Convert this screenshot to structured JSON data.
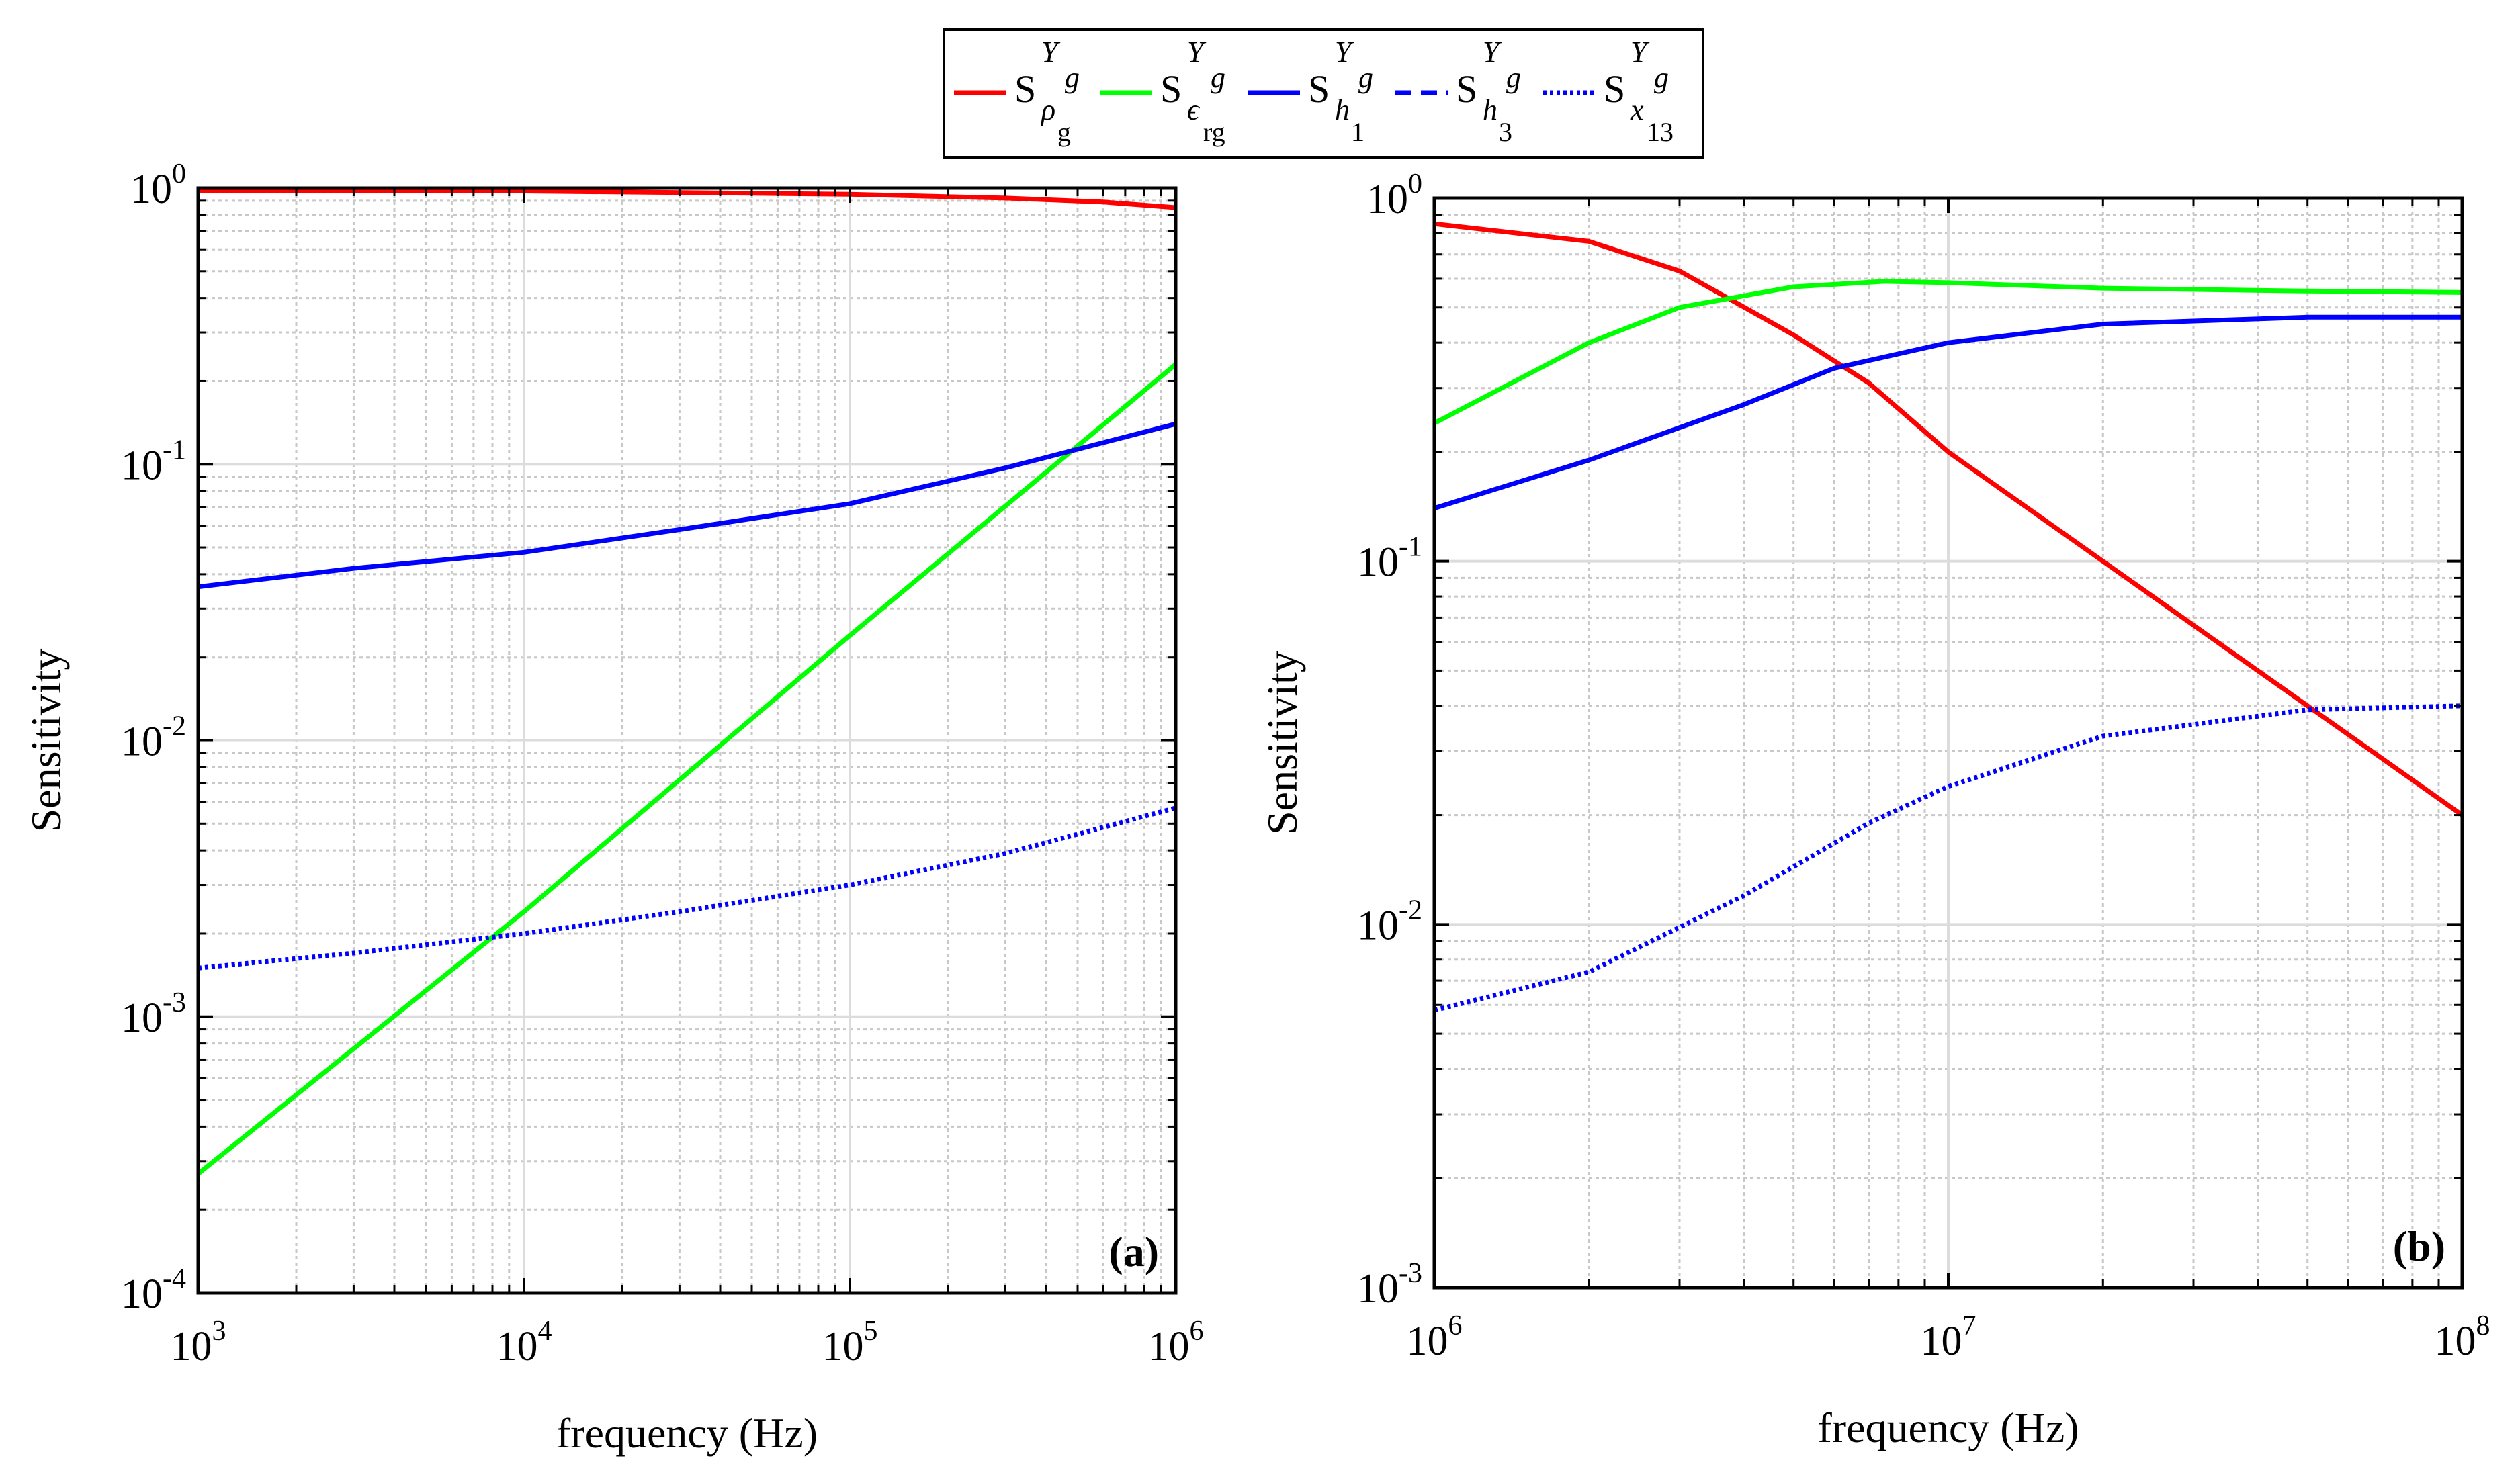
{
  "legend": {
    "items": [
      {
        "base": "S",
        "sup": "Y",
        "subsup": "g",
        "sub": "ρ",
        "subsub": "g",
        "color": "#ff0000",
        "dash": "solid"
      },
      {
        "base": "S",
        "sup": "Y",
        "subsup": "g",
        "sub": "ϵ",
        "subsub": "rg",
        "color": "#00ff00",
        "dash": "solid"
      },
      {
        "base": "S",
        "sup": "Y",
        "subsup": "g",
        "sub": "h",
        "subsub": "1",
        "color": "#0000ff",
        "dash": "solid"
      },
      {
        "base": "S",
        "sup": "Y",
        "subsup": "g",
        "sub": "h",
        "subsub": "3",
        "color": "#0000ff",
        "dash": "dashed"
      },
      {
        "base": "S",
        "sup": "Y",
        "subsup": "g",
        "sub": "x",
        "subsub": "13",
        "color": "#0000ff",
        "dash": "dotted"
      }
    ]
  },
  "chart_data": [
    {
      "type": "line",
      "panel_label": "(a)",
      "xlabel": "frequency (Hz)",
      "ylabel": "Sensitivity",
      "xscale": "log",
      "yscale": "log",
      "xlim_exp": [
        3,
        6
      ],
      "ylim_exp": [
        -4,
        0
      ],
      "x_tick_labels": [
        {
          "base": "10",
          "exp": "3"
        },
        {
          "base": "10",
          "exp": "4"
        },
        {
          "base": "10",
          "exp": "5"
        },
        {
          "base": "10",
          "exp": "6"
        }
      ],
      "y_tick_labels": [
        {
          "base": "10",
          "exp": "-4"
        },
        {
          "base": "10",
          "exp": "-3"
        },
        {
          "base": "10",
          "exp": "-2"
        },
        {
          "base": "10",
          "exp": "-1"
        },
        {
          "base": "10",
          "exp": "0"
        }
      ],
      "grid": true,
      "series": [
        {
          "name": "S_rho_g",
          "color": "#ff0000",
          "dash": "solid",
          "x": [
            1000,
            10000,
            100000,
            300000,
            600000,
            1000000
          ],
          "y": [
            0.98,
            0.975,
            0.95,
            0.92,
            0.89,
            0.85
          ]
        },
        {
          "name": "S_eps_rg",
          "color": "#00ff00",
          "dash": "solid",
          "x": [
            1000,
            10000,
            100000,
            1000000
          ],
          "y": [
            0.00027,
            0.0024,
            0.024,
            0.23
          ]
        },
        {
          "name": "S_h1",
          "color": "#0000ff",
          "dash": "solid",
          "x": [
            1000,
            3000,
            10000,
            30000,
            100000,
            300000,
            1000000
          ],
          "y": [
            0.036,
            0.042,
            0.048,
            0.058,
            0.072,
            0.097,
            0.14
          ]
        },
        {
          "name": "S_x13",
          "color": "#0000ff",
          "dash": "dotted",
          "x": [
            1000,
            3000,
            10000,
            30000,
            100000,
            300000,
            1000000
          ],
          "y": [
            0.0015,
            0.0017,
            0.002,
            0.0024,
            0.003,
            0.0039,
            0.0057
          ]
        }
      ]
    },
    {
      "type": "line",
      "panel_label": "(b)",
      "xlabel": "frequency (Hz)",
      "ylabel": "Sensitivity",
      "xscale": "log",
      "yscale": "log",
      "xlim_exp": [
        6,
        8
      ],
      "ylim_exp": [
        -3,
        0
      ],
      "x_tick_labels": [
        {
          "base": "10",
          "exp": "6"
        },
        {
          "base": "10",
          "exp": "7"
        },
        {
          "base": "10",
          "exp": "8"
        }
      ],
      "y_tick_labels": [
        {
          "base": "10",
          "exp": "-3"
        },
        {
          "base": "10",
          "exp": "-2"
        },
        {
          "base": "10",
          "exp": "-1"
        },
        {
          "base": "10",
          "exp": "0"
        }
      ],
      "grid": true,
      "series": [
        {
          "name": "S_rho_g",
          "color": "#ff0000",
          "dash": "solid",
          "x": [
            1000000,
            2000000,
            3000000,
            5000000,
            7000000,
            10000000,
            20000000,
            50000000,
            100000000
          ],
          "y": [
            0.85,
            0.76,
            0.63,
            0.42,
            0.31,
            0.2,
            0.1,
            0.04,
            0.02
          ]
        },
        {
          "name": "S_eps_rg",
          "color": "#00ff00",
          "dash": "solid",
          "x": [
            1000000,
            2000000,
            3000000,
            5000000,
            7500000,
            10000000,
            20000000,
            50000000,
            100000000
          ],
          "y": [
            0.24,
            0.4,
            0.5,
            0.57,
            0.59,
            0.585,
            0.565,
            0.555,
            0.55
          ]
        },
        {
          "name": "S_h1",
          "color": "#0000ff",
          "dash": "solid",
          "x": [
            1000000,
            2000000,
            4000000,
            6000000,
            10000000,
            20000000,
            50000000,
            100000000
          ],
          "y": [
            0.14,
            0.19,
            0.27,
            0.34,
            0.4,
            0.45,
            0.47,
            0.47
          ]
        },
        {
          "name": "S_x13",
          "color": "#0000ff",
          "dash": "dotted",
          "x": [
            1000000,
            2000000,
            4000000,
            7000000,
            10000000,
            20000000,
            50000000,
            100000000
          ],
          "y": [
            0.0058,
            0.0074,
            0.012,
            0.019,
            0.024,
            0.033,
            0.039,
            0.04
          ]
        }
      ]
    }
  ]
}
